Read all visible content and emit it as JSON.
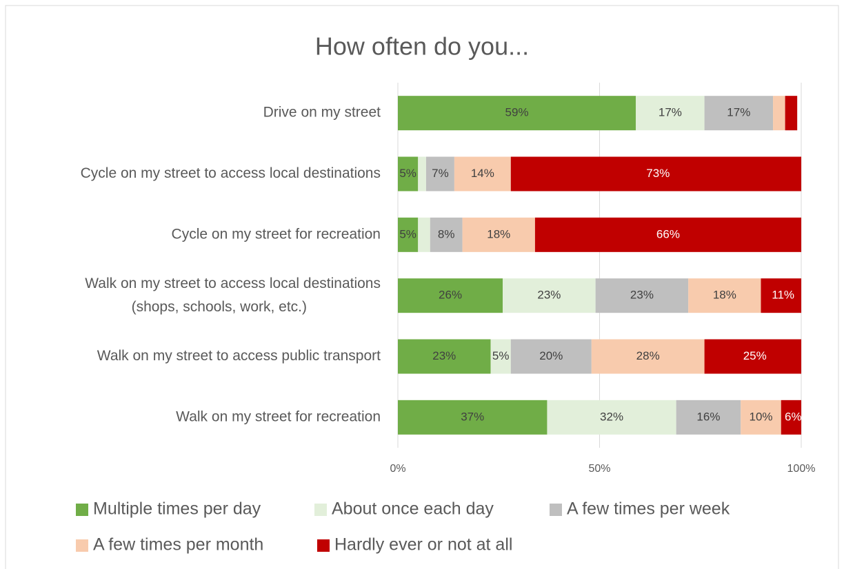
{
  "chart_data": {
    "type": "stacked-bar-horizontal",
    "title": "How often do you...",
    "categories": [
      "Drive on my street",
      "Cycle on my street to access local destinations",
      "Cycle on my street for recreation",
      "Walk on my street to access local destinations (shops, schools, work, etc.)",
      "Walk on my street to access public transport",
      "Walk on my street for recreation"
    ],
    "series": [
      {
        "name": "Multiple times per day",
        "color": "#70ad47",
        "values": [
          59,
          5,
          5,
          26,
          23,
          37
        ],
        "value_labels": [
          "59%",
          "5%",
          "5%",
          "26%",
          "23%",
          "37%"
        ]
      },
      {
        "name": "About once each day",
        "color": "#e2efda",
        "values": [
          17,
          2,
          3,
          23,
          5,
          32
        ],
        "value_labels": [
          "17%",
          null,
          null,
          "23%",
          "5%",
          "32%"
        ]
      },
      {
        "name": "A few times per week",
        "color": "#bfbfbf",
        "values": [
          17,
          7,
          8,
          23,
          20,
          16
        ],
        "value_labels": [
          "17%",
          "7%",
          "8%",
          "23%",
          "20%",
          "16%"
        ]
      },
      {
        "name": "A few times per month",
        "color": "#f8cbad",
        "values": [
          3,
          14,
          18,
          18,
          28,
          10
        ],
        "value_labels": [
          null,
          "14%",
          "18%",
          "18%",
          "28%",
          "10%"
        ]
      },
      {
        "name": "Hardly ever or not at all",
        "color": "#c00000",
        "values": [
          3,
          73,
          66,
          11,
          25,
          6
        ],
        "value_labels": [
          null,
          "73%",
          "66%",
          "11%",
          "25%",
          "6%"
        ]
      }
    ],
    "xlim": [
      0,
      100
    ],
    "xticks": [
      {
        "value": 0,
        "label": "0%"
      },
      {
        "value": 50,
        "label": "50%"
      },
      {
        "value": 100,
        "label": "100%"
      }
    ],
    "grid": true,
    "legend": "bottom"
  }
}
